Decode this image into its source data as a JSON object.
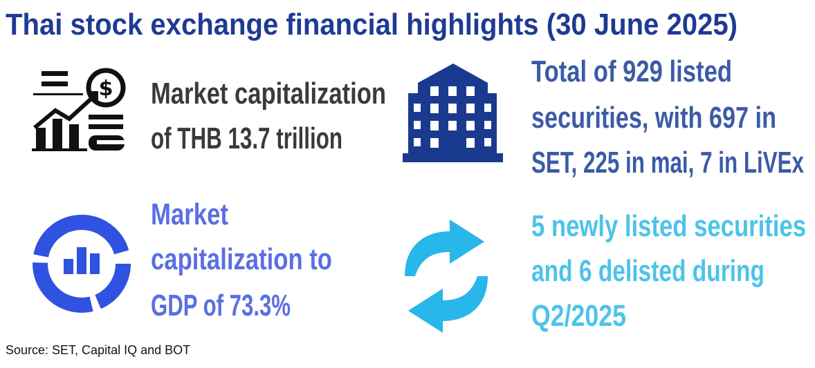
{
  "header": {
    "title": "Thai stock exchange financial highlights (30  June 2025)"
  },
  "items": [
    {
      "lines": [
        "Market capitalization",
        "of THB 13.7 trillion"
      ]
    },
    {
      "lines": [
        "Total of 929  listed",
        "securities, with 697 in",
        "SET, 225 in mai, 7 in  LiVEx"
      ]
    },
    {
      "lines": [
        "Market",
        "capitalization to",
        "GDP of 73.3%"
      ]
    },
    {
      "lines": [
        "5  newly listed securities",
        "and 6 delisted during",
        "Q2/2025"
      ]
    }
  ],
  "footer": {
    "source": "Source: SET, Capital IQ and BOT"
  }
}
